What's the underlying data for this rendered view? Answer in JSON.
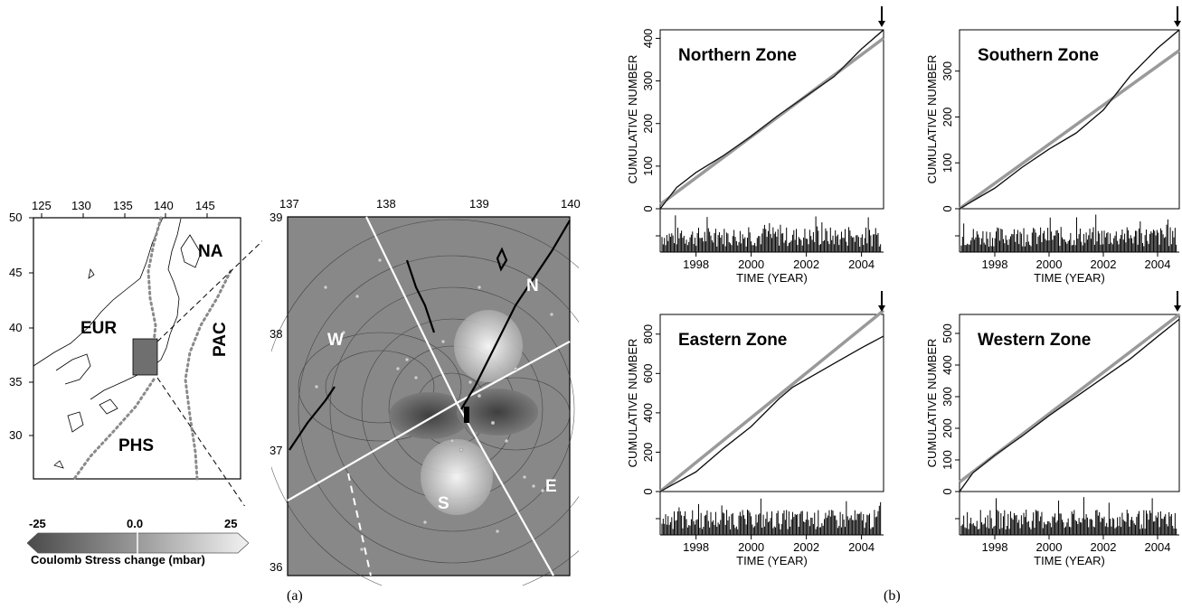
{
  "panel_a": {
    "caption": "(a)",
    "overview_map": {
      "lon_ticks": [
        "125",
        "130",
        "135",
        "140",
        "145"
      ],
      "lat_ticks": [
        "50",
        "45",
        "40",
        "35",
        "30"
      ],
      "plates": {
        "na": "NA",
        "eur": "EUR",
        "pac": "PAC",
        "phs": "PHS"
      }
    },
    "colorbar": {
      "min_label": "-25",
      "mid_label": "0.0",
      "max_label": "25",
      "title": "Coulomb Stress change (mbar)"
    },
    "detail_map": {
      "lon_ticks": [
        "137",
        "138",
        "139",
        "140"
      ],
      "lat_ticks": [
        "39",
        "38",
        "37",
        "36"
      ],
      "zones": {
        "n": "N",
        "w": "W",
        "s": "S",
        "e": "E"
      }
    }
  },
  "panel_b": {
    "caption": "(b)",
    "ylabel": "CUMULATIVE NUMBER",
    "xlabel": "TIME (YEAR)",
    "colors": {
      "observed": "#111111",
      "model": "#9a9a9a"
    }
  },
  "chart_data": [
    {
      "type": "line",
      "title": "Northern Zone",
      "xlabel": "TIME (YEAR)",
      "ylabel": "CUMULATIVE NUMBER",
      "xlim": [
        1996.7,
        2004.8
      ],
      "ylim": [
        0,
        420
      ],
      "x_ticks": [
        1998,
        2000,
        2002,
        2004
      ],
      "y_ticks": [
        0,
        100,
        200,
        300,
        400
      ],
      "series": [
        {
          "x": [
            1996.7,
            1997.3,
            1998.0,
            1999.0,
            2000.0,
            2001.0,
            2002.0,
            2003.0,
            2004.0,
            2004.8
          ],
          "values": [
            0,
            50,
            85,
            125,
            170,
            220,
            265,
            310,
            375,
            420
          ]
        },
        {
          "x": [
            1996.7,
            2004.8
          ],
          "values": [
            10,
            400
          ]
        }
      ]
    },
    {
      "type": "line",
      "title": "Southern Zone",
      "xlabel": "TIME (YEAR)",
      "ylabel": "CUMULATIVE NUMBER",
      "xlim": [
        1996.7,
        2004.8
      ],
      "ylim": [
        0,
        390
      ],
      "x_ticks": [
        1998,
        2000,
        2002,
        2004
      ],
      "y_ticks": [
        0,
        100,
        200,
        300
      ],
      "series": [
        {
          "x": [
            1996.7,
            1998.0,
            1999.0,
            2000.0,
            2001.0,
            2002.0,
            2003.0,
            2004.0,
            2004.8
          ],
          "values": [
            0,
            45,
            90,
            130,
            165,
            215,
            290,
            350,
            390
          ]
        },
        {
          "x": [
            1996.7,
            2004.8
          ],
          "values": [
            0,
            345
          ]
        }
      ]
    },
    {
      "type": "line",
      "title": "Eastern Zone",
      "xlabel": "TIME (YEAR)",
      "ylabel": "CUMULATIVE NUMBER",
      "xlim": [
        1996.7,
        2004.8
      ],
      "ylim": [
        0,
        900
      ],
      "x_ticks": [
        1998,
        2000,
        2002,
        2004
      ],
      "y_ticks": [
        0,
        200,
        400,
        600,
        800
      ],
      "series": [
        {
          "x": [
            1996.7,
            1998.0,
            1999.0,
            2000.0,
            2001.0,
            2001.5,
            2002.0,
            2003.0,
            2004.0,
            2004.8
          ],
          "values": [
            0,
            100,
            220,
            330,
            470,
            530,
            570,
            650,
            730,
            790
          ]
        },
        {
          "x": [
            1996.7,
            2004.8
          ],
          "values": [
            0,
            920
          ]
        }
      ]
    },
    {
      "type": "line",
      "title": "Western Zone",
      "xlabel": "TIME (YEAR)",
      "ylabel": "CUMULATIVE NUMBER",
      "xlim": [
        1996.7,
        2004.8
      ],
      "ylim": [
        0,
        560
      ],
      "x_ticks": [
        1998,
        2000,
        2002,
        2004
      ],
      "y_ticks": [
        0,
        100,
        200,
        300,
        400,
        500
      ],
      "series": [
        {
          "x": [
            1996.7,
            1997.2,
            1998.0,
            1999.0,
            2000.0,
            2001.0,
            2002.0,
            2003.0,
            2004.0,
            2004.8
          ],
          "values": [
            0,
            60,
            115,
            175,
            240,
            300,
            360,
            420,
            490,
            545
          ]
        },
        {
          "x": [
            1996.7,
            2004.8
          ],
          "values": [
            30,
            560
          ]
        }
      ]
    }
  ]
}
